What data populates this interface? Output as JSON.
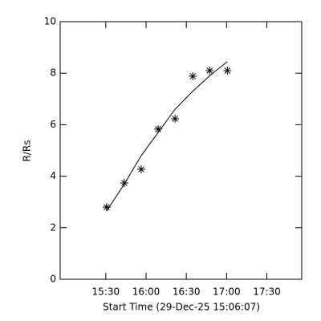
{
  "chart_data": {
    "type": "scatter",
    "xlabel": "Start Time (29-Dec-25 15:06:07)",
    "ylabel": "R/Rs",
    "x": [
      930.6,
      943.8,
      956.4,
      969,
      981.6,
      994.8,
      1007.4,
      1020.6
    ],
    "values": [
      2.8,
      3.74,
      4.27,
      5.83,
      6.23,
      7.88,
      8.1,
      8.1
    ],
    "color": "#000000",
    "fit": {
      "x": [
        930.6,
        943.8,
        956.4,
        969,
        981.6,
        994.8,
        1007.4,
        1020.6
      ],
      "values": [
        2.65,
        3.7,
        4.8,
        5.7,
        6.6,
        7.3,
        7.9,
        8.45
      ]
    },
    "xlim": [
      896,
      1076
    ],
    "xticks": [
      {
        "value": 930,
        "label": "15:30"
      },
      {
        "value": 960,
        "label": "16:00"
      },
      {
        "value": 990,
        "label": "16:30"
      },
      {
        "value": 1020,
        "label": "17:00"
      },
      {
        "value": 1050,
        "label": "17:30"
      }
    ],
    "ylim": [
      0,
      10
    ],
    "yticks": [
      0,
      2,
      4,
      6,
      8,
      10
    ]
  }
}
